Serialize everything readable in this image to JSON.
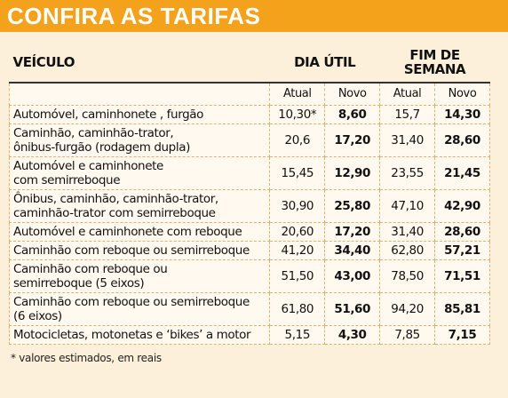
{
  "header": {
    "title": "CONFIRA AS TARIFAS"
  },
  "table": {
    "vehicle_header": "VEÍCULO",
    "group_headers": [
      "DIA ÚTIL",
      "FIM DE SEMANA"
    ],
    "sub_headers": [
      "Atual",
      "Novo",
      "Atual",
      "Novo"
    ],
    "rows": [
      [
        "Automóvel, caminhonete , furgão",
        "10,30*",
        "8,60",
        "15,7",
        "14,30"
      ],
      [
        "Caminhão, caminhão-trator,\nônibus-furgão (rodagem dupla)",
        "20,6",
        "17,20",
        "31,40",
        "28,60"
      ],
      [
        "Automóvel e caminhonete\ncom semirreboque",
        "15,45",
        "12,90",
        "23,55",
        "21,45"
      ],
      [
        "Ônibus, caminhão, caminhão-trator,\ncaminhão-trator com semirreboque",
        "30,90",
        "25,80",
        "47,10",
        "42,90"
      ],
      [
        "Automóvel e caminhonete com reboque",
        "20,60",
        "17,20",
        "31,40",
        "28,60"
      ],
      [
        "Caminhão com reboque ou semirreboque",
        "41,20",
        "34,40",
        "62,80",
        "57,21"
      ],
      [
        "Caminhão com reboque ou\nsemirreboque (5 eixos)",
        "51,50",
        "43,00",
        "78,50",
        "71,51"
      ],
      [
        "Caminhão com reboque ou semirreboque\n(6 eixos)",
        "61,80",
        "51,60",
        "94,20",
        "85,81"
      ],
      [
        "Motocicletas, motonetas e ‘bikes’ a motor",
        "5,15",
        "4,30",
        "7,85",
        "7,15"
      ]
    ]
  },
  "footnote": "* valores estimados, em reais"
}
